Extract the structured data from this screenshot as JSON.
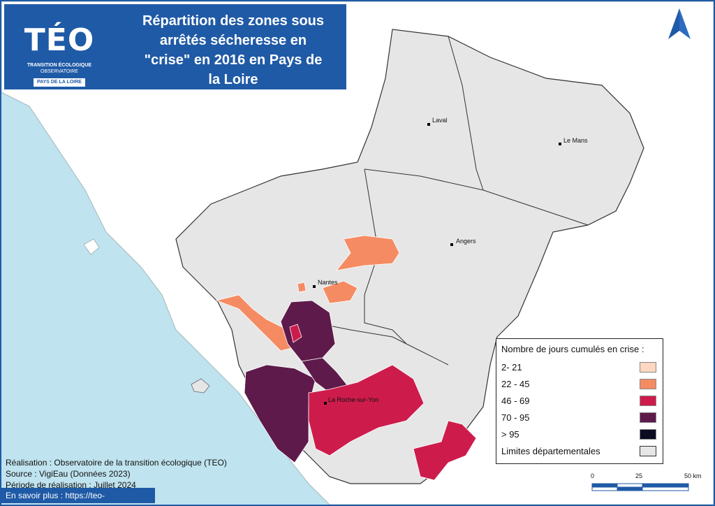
{
  "title": "Répartition des zones sous arrêtés sécheresse en \"crise\" en 2016 en Pays de la Loire",
  "title_lines": [
    "Répartition des zones sous",
    "arrêtés sécheresse en",
    "\"crise\" en 2016 en Pays de",
    "la Loire"
  ],
  "logo": {
    "name": "TÉO",
    "sub1": "TRANSITION ÉCOLOGIQUE",
    "sub2": "OBSERVATOIRE",
    "region": "PAYS DE LA LOIRE"
  },
  "cities": [
    {
      "name": "Laval"
    },
    {
      "name": "Le Mans"
    },
    {
      "name": "Angers"
    },
    {
      "name": "Nantes"
    },
    {
      "name": "La Roche-sur-Yon"
    }
  ],
  "legend": {
    "title": "Nombre de jours cumulés en crise :",
    "classes": [
      {
        "label": "2- 21",
        "color": "#fbd8bf"
      },
      {
        "label": "22 - 45",
        "color": "#f58b63"
      },
      {
        "label": "46 - 69",
        "color": "#cd1c4c"
      },
      {
        "label": "70 - 95",
        "color": "#5e1a4a"
      },
      {
        "label": "> 95",
        "color": "#0b0b22"
      }
    ],
    "boundary_label": "Limites départementales",
    "boundary_color": "#e6e6e6"
  },
  "credits": [
    "Réalisation : Observatoire de la transition écologique (TEO)",
    "Source : VigiEau (Données 2023)",
    "Période de réalisation : Juillet 2024"
  ],
  "more_link": "En savoir plus : https://teo-paysdelaloire.fr/",
  "scale": {
    "ticks": [
      "0",
      "25",
      "50 km"
    ]
  },
  "colors": {
    "sea": "#bfe3ef",
    "land_outside": "#ffffff",
    "land_region": "#e6e6e6",
    "accent": "#1f5aa6"
  }
}
